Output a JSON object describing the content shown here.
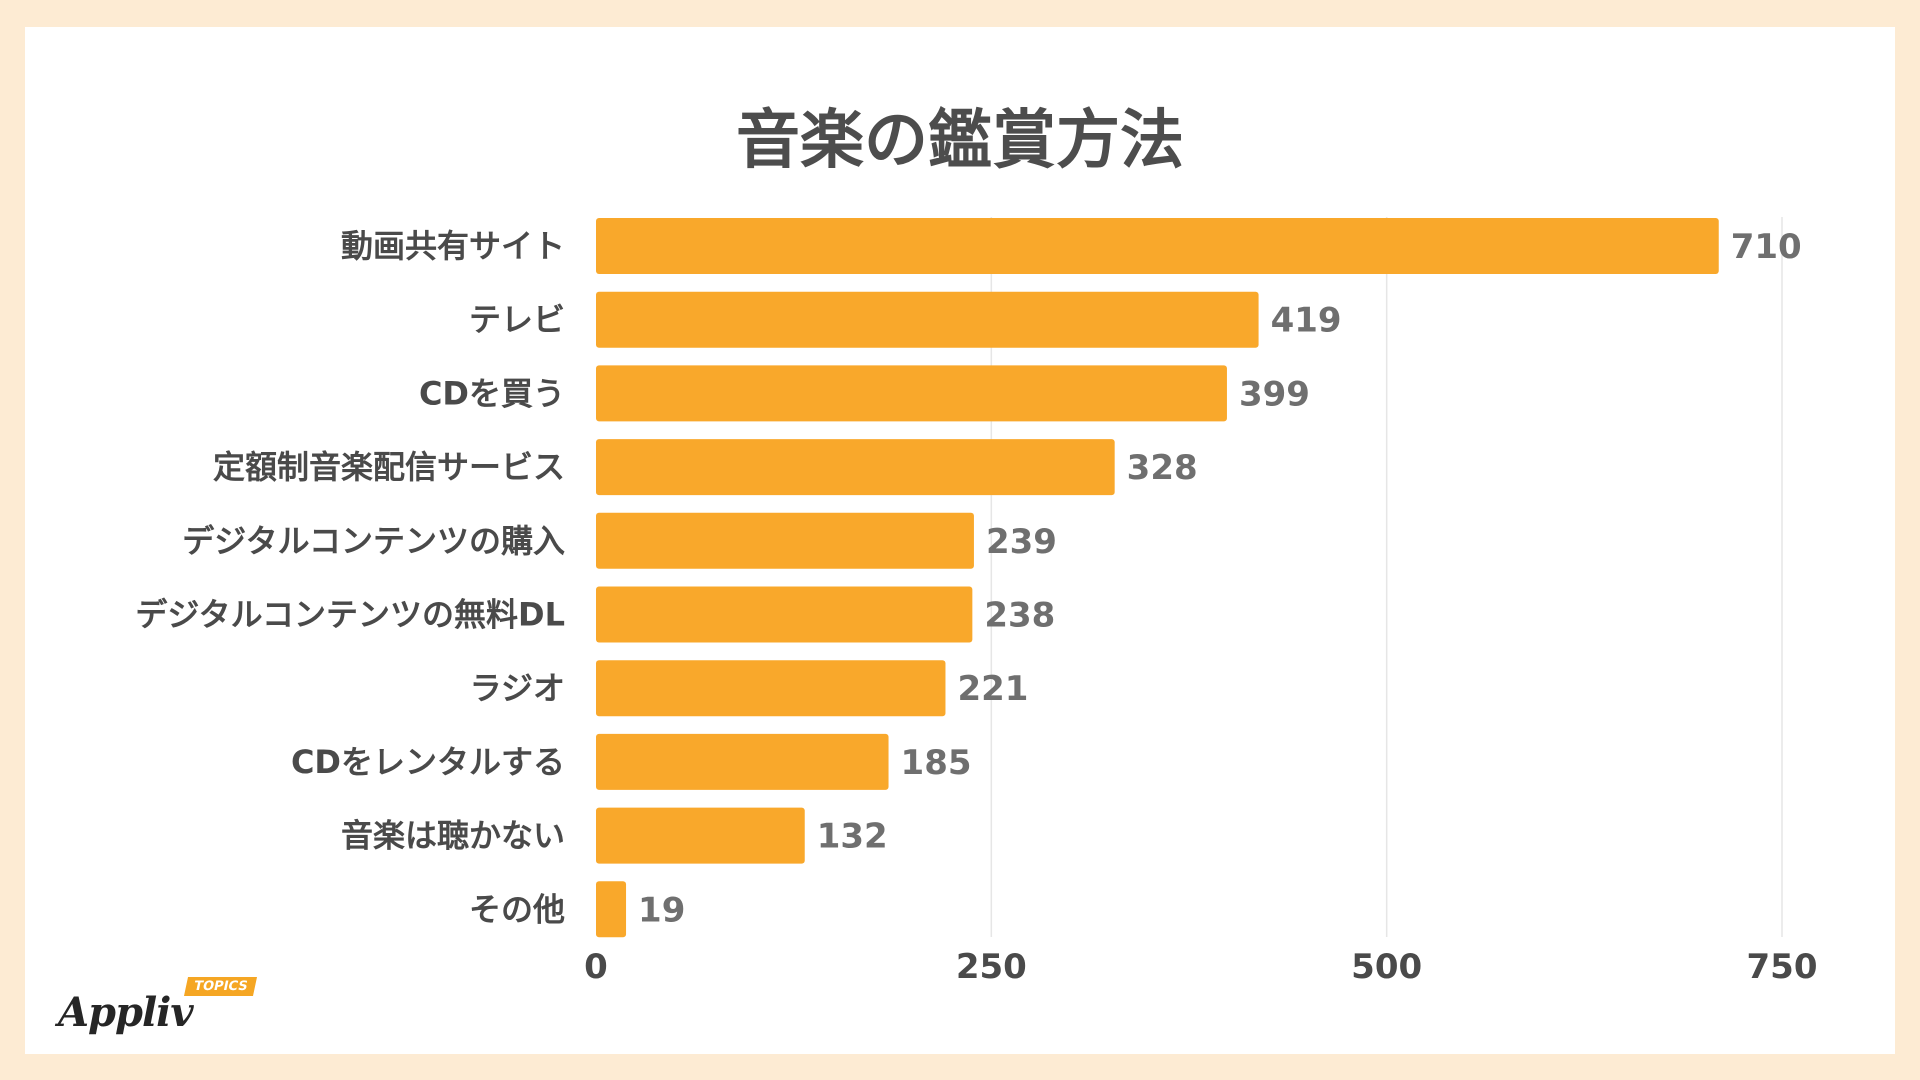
{
  "chart_data": {
    "type": "bar",
    "orientation": "horizontal",
    "title": "音楽の鑑賞方法",
    "categories": [
      "動画共有サイト",
      "テレビ",
      "CDを買う",
      "定額制音楽配信サービス",
      "デジタルコンテンツの購入",
      "デジタルコンテンツの無料DL",
      "ラジオ",
      "CDをレンタルする",
      "音楽は聴かない",
      "その他"
    ],
    "values": [
      710,
      419,
      399,
      328,
      239,
      238,
      221,
      185,
      132,
      19
    ],
    "xlim": [
      0,
      750
    ],
    "xticks": [
      0,
      250,
      500,
      750
    ],
    "grid": "vertical",
    "bar_color": "#f9a82b",
    "grid_color": "#e6e6e6"
  },
  "logo": {
    "word": "Appliv",
    "tag": "TOPICS"
  },
  "colors": {
    "background": "#fdebd3",
    "panel": "#ffffff",
    "title": "#4d4d4d"
  }
}
